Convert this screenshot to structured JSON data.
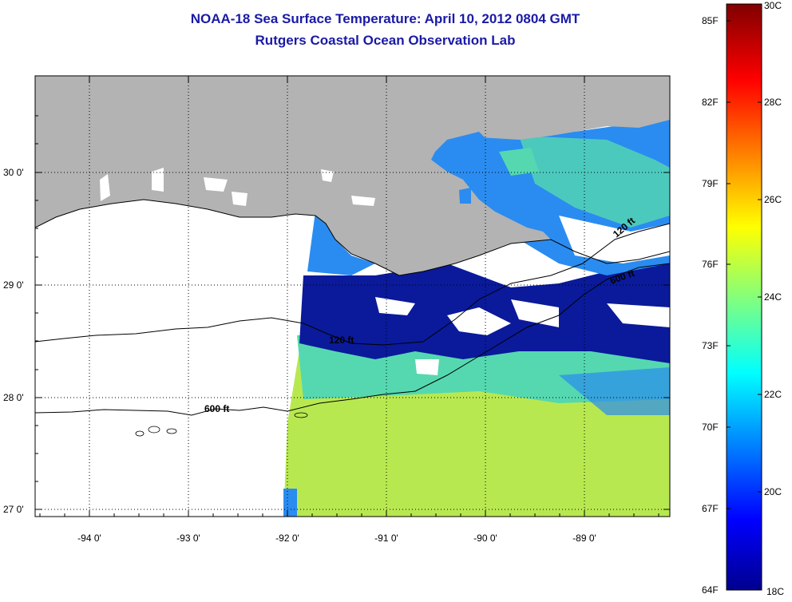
{
  "title": "NOAA-18 Sea Surface Temperature:  April 10, 2012 0804 GMT",
  "subtitle": "Rutgers Coastal Ocean Observation Lab",
  "map": {
    "lat_labels": [
      "30 0'",
      "29 0'",
      "28 0'",
      "27 0'"
    ],
    "lon_labels": [
      "-94 0'",
      "-93 0'",
      "-92 0'",
      "-91 0'",
      "-90 0'",
      "-89 0'"
    ],
    "contours": [
      "120 ft",
      "600 ft",
      "600 ft",
      "120 ft"
    ],
    "colors": {
      "land": "#b3b3b3",
      "no_data": "#ffffff",
      "warm_water": "#b8e850",
      "mid_water": "#55d8b0",
      "cool_water": "#2a8cf0",
      "cold_water": "#0a1a9a"
    }
  },
  "colorbar": {
    "fahrenheit": [
      "85F",
      "82F",
      "79F",
      "76F",
      "73F",
      "70F",
      "67F",
      "64F"
    ],
    "celsius": [
      "30C",
      "28C",
      "26C",
      "24C",
      "22C",
      "20C",
      "18C"
    ],
    "range_c": [
      18,
      30
    ],
    "range_f": [
      64,
      86
    ],
    "colormap": "jet"
  }
}
